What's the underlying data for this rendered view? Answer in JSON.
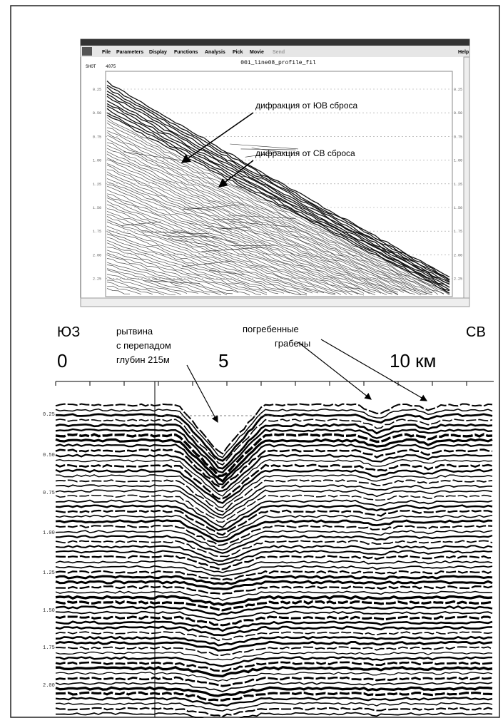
{
  "top_panel": {
    "menu": [
      "File",
      "Parameters",
      "Display",
      "Functions",
      "Analysis",
      "Pick",
      "Movie",
      "Send"
    ],
    "help": "Help",
    "title": "001_line08_profile_fil",
    "shot_label": "SHOT",
    "shot_value": "4075",
    "time_labels": [
      "0.25",
      "0.50",
      "0.75",
      "1.00",
      "1.25",
      "1.50",
      "1.75",
      "2.00",
      "2.25"
    ],
    "annotations": [
      "дифракция от ЮВ сброса",
      "дифракция от СВ сброса"
    ]
  },
  "bottom_panel": {
    "left_direction": "ЮЗ",
    "right_direction": "СВ",
    "scale_labels": [
      "0",
      "5",
      "10 км"
    ],
    "trough_note": [
      "рытвина",
      "с перепадом",
      "глубин 215м"
    ],
    "graben_note": [
      "погребенные",
      "грабены"
    ],
    "time_labels": [
      "0.25",
      "0.50",
      "0.75",
      "1.00",
      "1.25",
      "1.50",
      "1.75",
      "2.00"
    ]
  }
}
